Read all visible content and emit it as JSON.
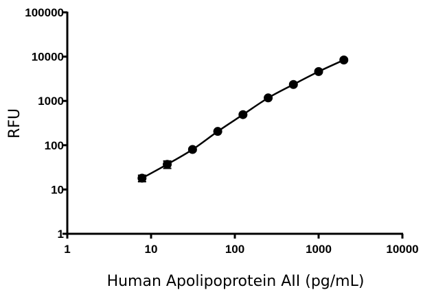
{
  "chart_data": {
    "type": "scatter",
    "xlabel": "Human Apolipoprotein AII (pg/mL)",
    "ylabel": "RFU",
    "xscale": "log",
    "yscale": "log",
    "xlim": [
      1,
      10000
    ],
    "ylim": [
      1,
      100000
    ],
    "xticks": [
      "1",
      "10",
      "100",
      "1000",
      "10000"
    ],
    "yticks": [
      "1",
      "10",
      "100",
      "1000",
      "10000",
      "100000"
    ],
    "grid": false,
    "legend": "none",
    "series": [
      {
        "x": [
          7.8,
          15.6,
          31.25,
          62.5,
          125,
          250,
          500,
          1000,
          2000
        ],
        "y": [
          18,
          37,
          80,
          205,
          490,
          1170,
          2350,
          4600,
          8400
        ],
        "y_err": [
          3,
          7,
          6,
          12,
          30,
          70,
          150,
          270,
          400
        ],
        "fit_curve": true,
        "marker": "circle",
        "color": "#000000"
      }
    ]
  }
}
